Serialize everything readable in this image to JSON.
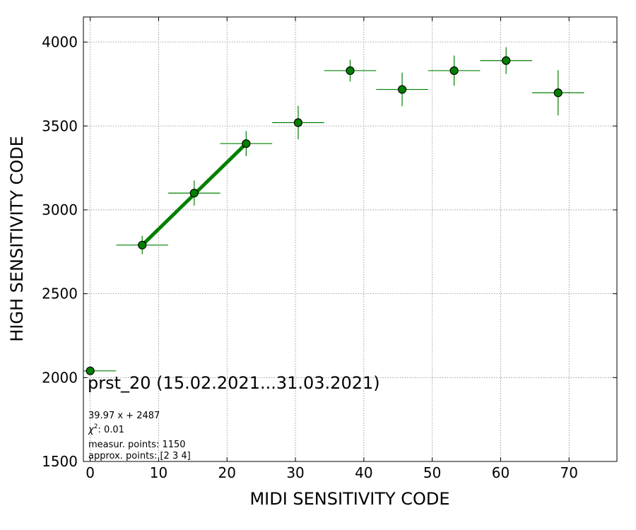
{
  "chart_data": {
    "type": "scatter",
    "xlabel": "MIDI SENSITIVITY CODE",
    "ylabel": "HIGH SENSITIVITY CODE",
    "xlim": [
      -1,
      77
    ],
    "ylim": [
      1500,
      4150
    ],
    "xticks": [
      0,
      10,
      20,
      30,
      40,
      50,
      60,
      70
    ],
    "yticks": [
      1500,
      2000,
      2500,
      3000,
      3500,
      4000
    ],
    "grid": true,
    "colors": {
      "marker": "#008000",
      "errorbar": "#008000",
      "fit": "#008000",
      "grid": "#888888"
    },
    "points": [
      {
        "x": 0.0,
        "y": 2040,
        "xerr": 3.8,
        "yerr": 0
      },
      {
        "x": 7.6,
        "y": 2790,
        "xerr": 3.8,
        "yerr": 55
      },
      {
        "x": 15.2,
        "y": 3100,
        "xerr": 3.8,
        "yerr": 75
      },
      {
        "x": 22.8,
        "y": 3395,
        "xerr": 3.8,
        "yerr": 75
      },
      {
        "x": 30.4,
        "y": 3520,
        "xerr": 3.8,
        "yerr": 100
      },
      {
        "x": 38.0,
        "y": 3830,
        "xerr": 3.8,
        "yerr": 65
      },
      {
        "x": 45.6,
        "y": 3718,
        "xerr": 3.8,
        "yerr": 100
      },
      {
        "x": 53.2,
        "y": 3830,
        "xerr": 3.8,
        "yerr": 90
      },
      {
        "x": 60.8,
        "y": 3890,
        "xerr": 3.8,
        "yerr": 80
      },
      {
        "x": 68.4,
        "y": 3698,
        "xerr": 3.8,
        "yerr": 135
      }
    ],
    "fit_line": {
      "x": [
        7.6,
        22.8
      ],
      "y": [
        2790,
        3395
      ]
    },
    "annotations": {
      "main": "prst_20 (15.02.2021...31.03.2021)",
      "equation": "39.97 x + 2487",
      "chi_prefix": "χ",
      "chi_sup": "2",
      "chi_value": ": 0.01",
      "measur": "measur. points: 1150",
      "approx": "approx. points: [2 3 4]"
    }
  }
}
